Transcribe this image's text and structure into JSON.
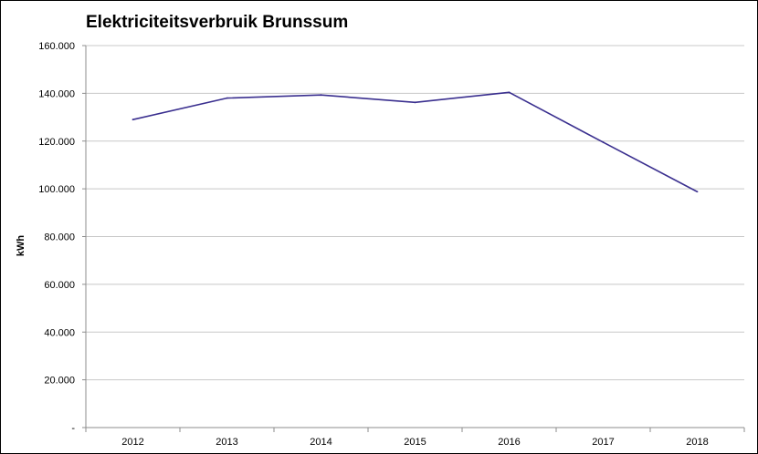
{
  "chart_data": {
    "type": "line",
    "title": "Elektriciteitsverbruik Brunssum",
    "xlabel": "",
    "ylabel": "kWh",
    "categories": [
      "2012",
      "2013",
      "2014",
      "2015",
      "2016",
      "2017",
      "2018"
    ],
    "series": [
      {
        "values": [
          129000,
          138000,
          139300,
          136200,
          140400,
          119500,
          98800
        ],
        "color": "#3a2f8f"
      }
    ],
    "ylim": [
      0,
      160000
    ],
    "yticks": [
      0,
      20000,
      40000,
      60000,
      80000,
      100000,
      120000,
      140000,
      160000
    ],
    "ytick_labels": [
      "-",
      "20.000",
      "40.000",
      "60.000",
      "80.000",
      "100.000",
      "120.000",
      "140.000",
      "160.000"
    ],
    "grid": true,
    "legend": "none"
  }
}
